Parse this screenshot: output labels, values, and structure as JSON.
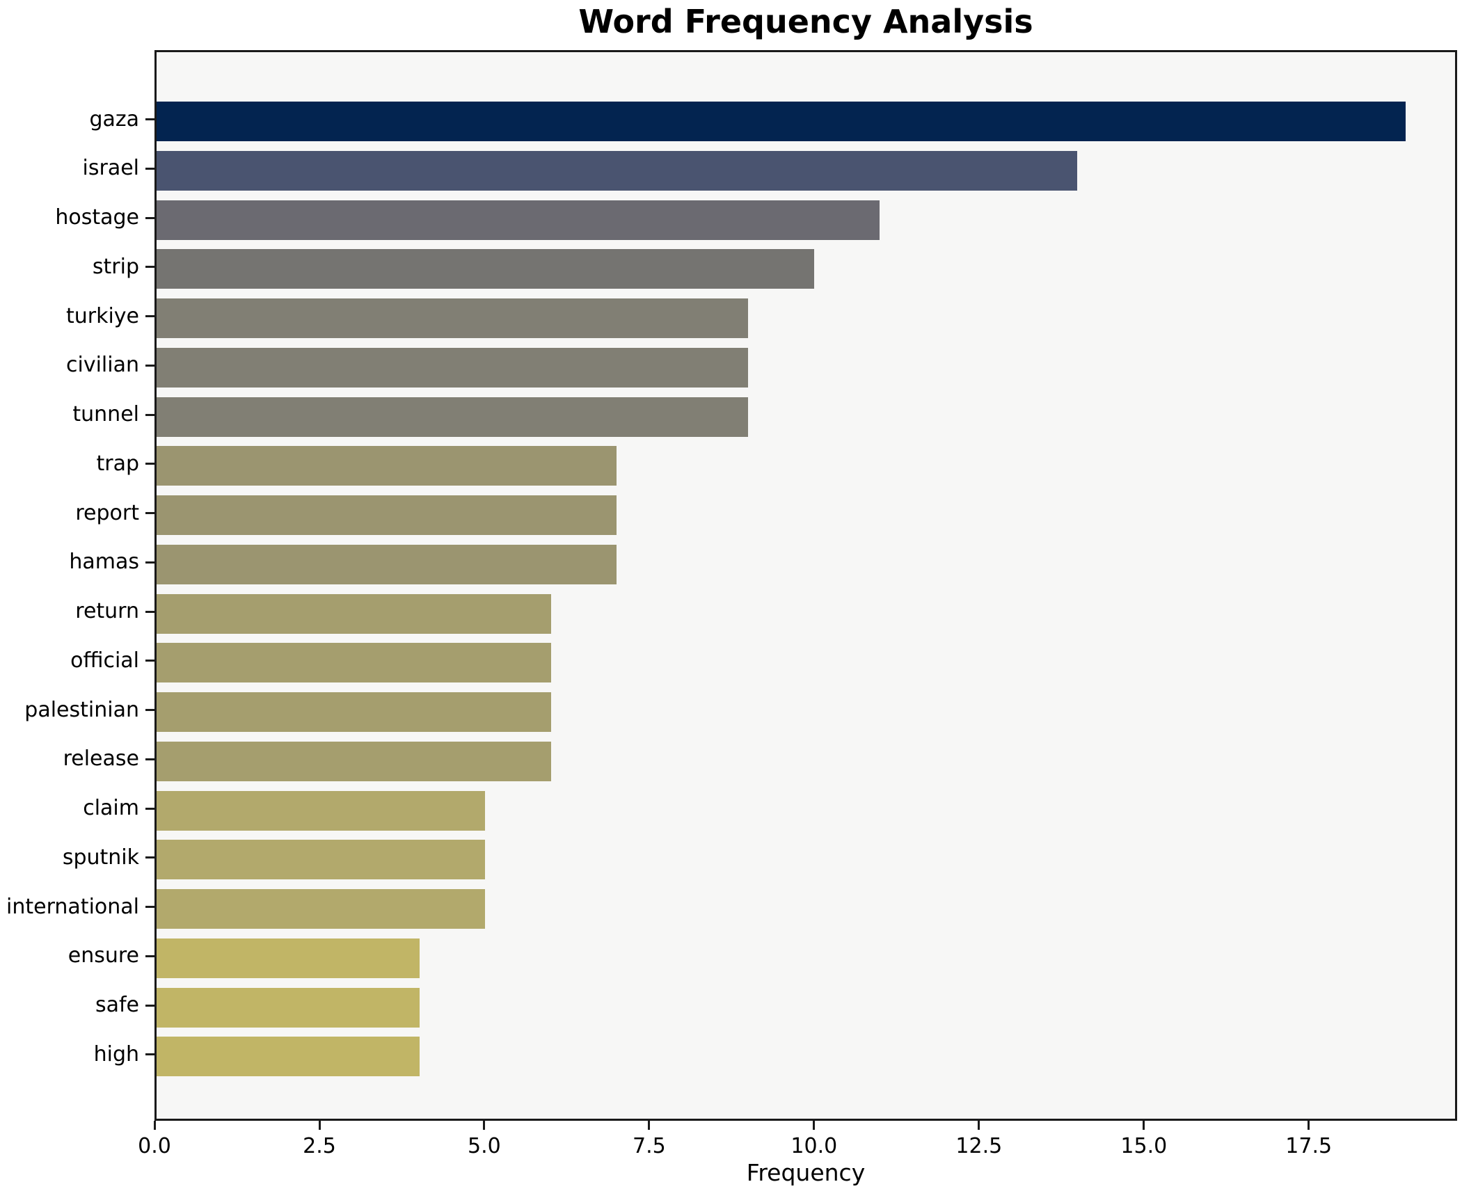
{
  "figure": {
    "title": "Word Frequency Analysis",
    "xlabel": "Frequency"
  },
  "colors": {
    "figure_bg": "#ffffff",
    "plot_bg": "#f7f7f6",
    "spine": "#1a1a1a",
    "text": "#000000"
  },
  "chart_data": {
    "type": "bar",
    "orientation": "horizontal",
    "title": "Word Frequency Analysis",
    "xlabel": "Frequency",
    "ylabel": "",
    "grid": false,
    "legend": false,
    "xlim": [
      0,
      19.75
    ],
    "xticks": [
      0,
      2.5,
      5,
      7.5,
      10,
      12.5,
      15,
      17.5
    ],
    "xtick_labels": [
      "0.0",
      "2.5",
      "5.0",
      "7.5",
      "10.0",
      "12.5",
      "15.0",
      "17.5"
    ],
    "categories": [
      "gaza",
      "israel",
      "hostage",
      "strip",
      "turkiye",
      "civilian",
      "tunnel",
      "trap",
      "report",
      "hamas",
      "return",
      "official",
      "palestinian",
      "release",
      "claim",
      "sputnik",
      "international",
      "ensure",
      "safe",
      "high"
    ],
    "values": [
      19,
      14,
      11,
      10,
      9,
      9,
      9,
      7,
      7,
      7,
      6,
      6,
      6,
      6,
      5,
      5,
      5,
      4,
      4,
      4
    ],
    "bar_colors": [
      "#032450",
      "#4a5470",
      "#6b6a71",
      "#757471",
      "#817f74",
      "#817f74",
      "#817f74",
      "#9b9570",
      "#9b9570",
      "#9b9570",
      "#a59e6e",
      "#a59e6e",
      "#a59e6e",
      "#a59e6e",
      "#b2a96c",
      "#b2a96c",
      "#b2a96c",
      "#c1b566",
      "#c1b566",
      "#c1b566"
    ]
  },
  "layout_note": "bars colored dark navy (highest frequency) to gold (lowest)"
}
